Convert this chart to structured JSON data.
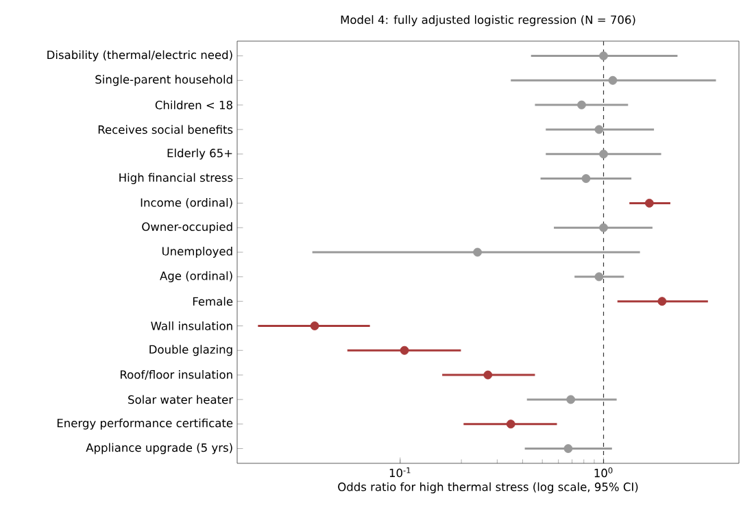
{
  "chart_data": {
    "type": "scatter",
    "orientation": "horizontal",
    "title": "Model 4: fully adjusted logistic regression (N = 706)",
    "xlabel": "Odds ratio for high thermal stress (log scale, 95% CI)",
    "categories": [
      "Disability (thermal/electric need)",
      "Single-parent household",
      "Children < 18",
      "Receives social benefits",
      "Elderly 65+",
      "High financial stress",
      "Income (ordinal)",
      "Owner-occupied",
      "Unemployed",
      "Age (ordinal)",
      "Female",
      "Wall insulation",
      "Double glazing",
      "Roof/floor insulation",
      "Solar water heater",
      "Energy performance certificate",
      "Appliance upgrade (5 yrs)"
    ],
    "values": [
      1.0,
      1.11,
      0.78,
      0.95,
      1.0,
      0.82,
      1.68,
      1.0,
      0.24,
      0.95,
      1.94,
      0.038,
      0.105,
      0.27,
      0.69,
      0.35,
      0.67
    ],
    "errors": [
      [
        0.44,
        2.31
      ],
      [
        0.35,
        3.57
      ],
      [
        0.46,
        1.32
      ],
      [
        0.52,
        1.77
      ],
      [
        0.52,
        1.92
      ],
      [
        0.49,
        1.37
      ],
      [
        1.34,
        2.13
      ],
      [
        0.57,
        1.74
      ],
      [
        0.037,
        1.51
      ],
      [
        0.72,
        1.26
      ],
      [
        1.17,
        3.26
      ],
      [
        0.02,
        0.071
      ],
      [
        0.055,
        0.199
      ],
      [
        0.161,
        0.46
      ],
      [
        0.42,
        1.16
      ],
      [
        0.205,
        0.59
      ],
      [
        0.41,
        1.1
      ]
    ],
    "colors": [
      "#999999",
      "#999999",
      "#999999",
      "#999999",
      "#999999",
      "#999999",
      "#a83a3a",
      "#999999",
      "#999999",
      "#999999",
      "#a83a3a",
      "#a83a3a",
      "#a83a3a",
      "#a83a3a",
      "#999999",
      "#a83a3a",
      "#999999"
    ],
    "marker": "circle",
    "log": "x",
    "xlim": [
      0.0158,
      4.63
    ],
    "xticks": [
      {
        "value": 0.1,
        "label": "10$^{-1}$"
      },
      {
        "value": 1,
        "label": "10$^{0}$"
      }
    ],
    "ref_lines": [
      {
        "axis": "x",
        "value": 1,
        "line_style": "dashed",
        "color": "#333333"
      }
    ]
  }
}
